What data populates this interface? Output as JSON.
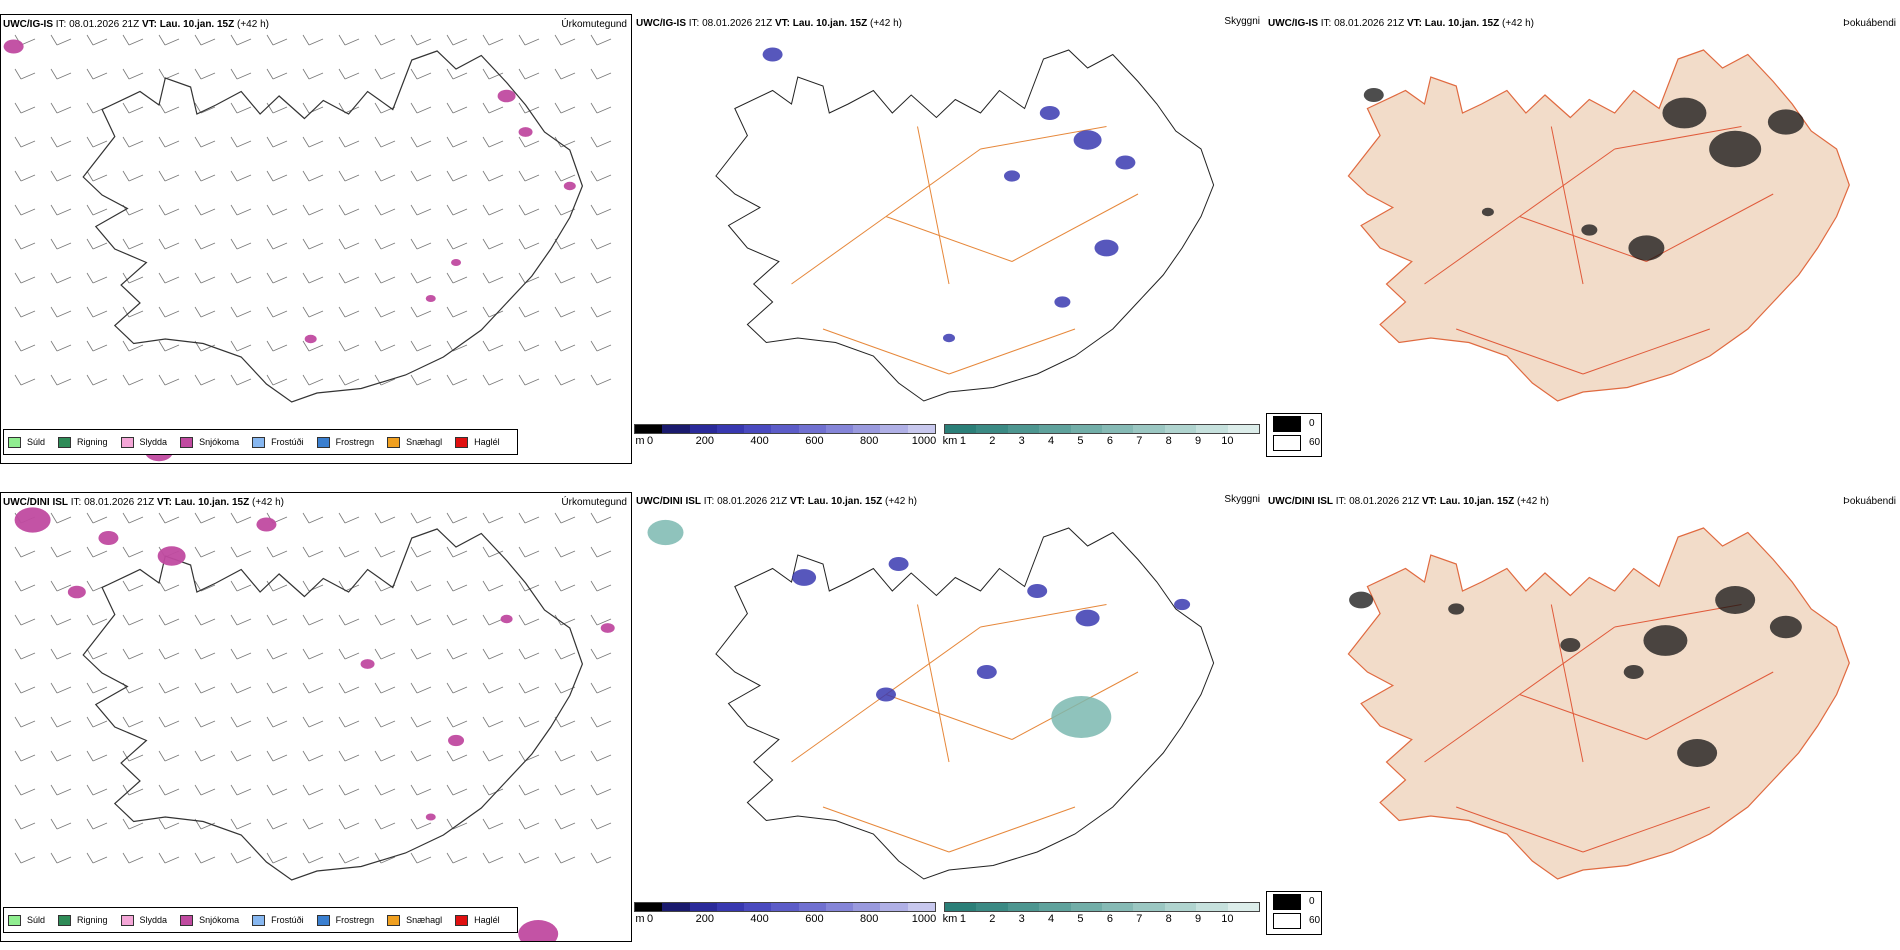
{
  "rows": [
    {
      "model": "UWC/IG-IS",
      "it_label": "IT:",
      "it_value": "08.01.2026 21Z",
      "vt_label": "VT:",
      "vt_value": "Lau. 10.jan. 15Z",
      "lead": "(+42 h)"
    },
    {
      "model": "UWC/DINI ISL",
      "it_label": "IT:",
      "it_value": "08.01.2026 21Z",
      "vt_label": "VT:",
      "vt_value": "Lau. 10.jan. 15Z",
      "lead": "(+42 h)"
    }
  ],
  "panel_titles": {
    "precip_type": "Úrkomutegund",
    "visibility": "Skyggni",
    "fog": "Þokuábendi"
  },
  "precip_legend": [
    {
      "label": "Súld",
      "color": "#90ee90"
    },
    {
      "label": "Rigning",
      "color": "#2e8b57"
    },
    {
      "label": "Slydda",
      "color": "#f4a6d7"
    },
    {
      "label": "Snjókoma",
      "color": "#c04aa0"
    },
    {
      "label": "Frostúði",
      "color": "#87b7f0"
    },
    {
      "label": "Frostregn",
      "color": "#3a7fd0"
    },
    {
      "label": "Snæhagl",
      "color": "#f0a020"
    },
    {
      "label": "Haglél",
      "color": "#e01010"
    }
  ],
  "ceiling_scale": {
    "unit": "m",
    "ticks": [
      "0",
      "200",
      "400",
      "600",
      "800",
      "1000"
    ],
    "colors": [
      "#000000",
      "#1a1a6e",
      "#2a2a9a",
      "#3838b0",
      "#4a4abf",
      "#5c5cc8",
      "#7070d0",
      "#8585d8",
      "#9a9ade",
      "#b0b0e6",
      "#c8c8ee"
    ]
  },
  "visibility_scale": {
    "unit": "km",
    "ticks": [
      "1",
      "2",
      "3",
      "4",
      "5",
      "6",
      "7",
      "8",
      "9",
      "10"
    ],
    "colors": [
      "#2b7f78",
      "#3b8a84",
      "#4d9690",
      "#5fa29c",
      "#72aea8",
      "#86bab5",
      "#9bc7c2",
      "#b0d4cf",
      "#c6e1dd",
      "#dcedea"
    ]
  },
  "fog_scale": {
    "items": [
      {
        "label": "0",
        "color": "#000000"
      },
      {
        "label": "60",
        "color": "#ffffff"
      }
    ]
  }
}
